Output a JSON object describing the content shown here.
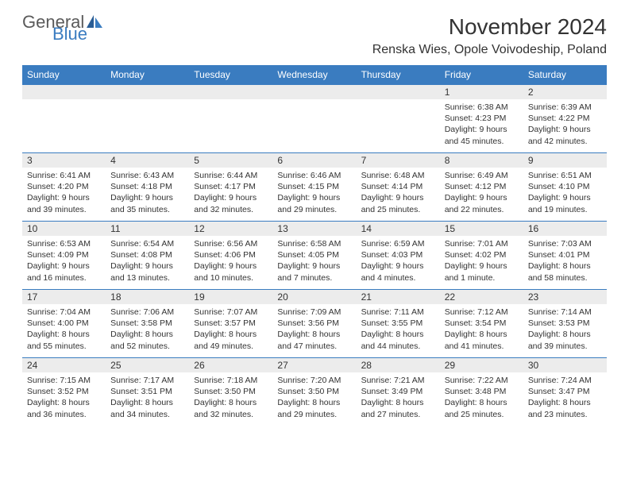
{
  "logo": {
    "text1": "General",
    "text2": "Blue"
  },
  "title": "November 2024",
  "location": "Renska Wies, Opole Voivodeship, Poland",
  "colors": {
    "header_bg": "#3a7cc0",
    "header_text": "#ffffff",
    "date_bg": "#ececec",
    "text": "#333333",
    "border": "#3a7cc0",
    "logo_dark": "#5a5a5a",
    "logo_blue": "#3a7cc0"
  },
  "dayNames": [
    "Sunday",
    "Monday",
    "Tuesday",
    "Wednesday",
    "Thursday",
    "Friday",
    "Saturday"
  ],
  "weeks": [
    [
      null,
      null,
      null,
      null,
      null,
      {
        "d": "1",
        "sr": "6:38 AM",
        "ss": "4:23 PM",
        "dh": "9",
        "dm": "45"
      },
      {
        "d": "2",
        "sr": "6:39 AM",
        "ss": "4:22 PM",
        "dh": "9",
        "dm": "42"
      }
    ],
    [
      {
        "d": "3",
        "sr": "6:41 AM",
        "ss": "4:20 PM",
        "dh": "9",
        "dm": "39"
      },
      {
        "d": "4",
        "sr": "6:43 AM",
        "ss": "4:18 PM",
        "dh": "9",
        "dm": "35"
      },
      {
        "d": "5",
        "sr": "6:44 AM",
        "ss": "4:17 PM",
        "dh": "9",
        "dm": "32"
      },
      {
        "d": "6",
        "sr": "6:46 AM",
        "ss": "4:15 PM",
        "dh": "9",
        "dm": "29"
      },
      {
        "d": "7",
        "sr": "6:48 AM",
        "ss": "4:14 PM",
        "dh": "9",
        "dm": "25"
      },
      {
        "d": "8",
        "sr": "6:49 AM",
        "ss": "4:12 PM",
        "dh": "9",
        "dm": "22"
      },
      {
        "d": "9",
        "sr": "6:51 AM",
        "ss": "4:10 PM",
        "dh": "9",
        "dm": "19"
      }
    ],
    [
      {
        "d": "10",
        "sr": "6:53 AM",
        "ss": "4:09 PM",
        "dh": "9",
        "dm": "16"
      },
      {
        "d": "11",
        "sr": "6:54 AM",
        "ss": "4:08 PM",
        "dh": "9",
        "dm": "13"
      },
      {
        "d": "12",
        "sr": "6:56 AM",
        "ss": "4:06 PM",
        "dh": "9",
        "dm": "10"
      },
      {
        "d": "13",
        "sr": "6:58 AM",
        "ss": "4:05 PM",
        "dh": "9",
        "dm": "7"
      },
      {
        "d": "14",
        "sr": "6:59 AM",
        "ss": "4:03 PM",
        "dh": "9",
        "dm": "4"
      },
      {
        "d": "15",
        "sr": "7:01 AM",
        "ss": "4:02 PM",
        "dh": "9",
        "dm": "1 minute."
      },
      {
        "d": "16",
        "sr": "7:03 AM",
        "ss": "4:01 PM",
        "dh": "8",
        "dm": "58"
      }
    ],
    [
      {
        "d": "17",
        "sr": "7:04 AM",
        "ss": "4:00 PM",
        "dh": "8",
        "dm": "55"
      },
      {
        "d": "18",
        "sr": "7:06 AM",
        "ss": "3:58 PM",
        "dh": "8",
        "dm": "52"
      },
      {
        "d": "19",
        "sr": "7:07 AM",
        "ss": "3:57 PM",
        "dh": "8",
        "dm": "49"
      },
      {
        "d": "20",
        "sr": "7:09 AM",
        "ss": "3:56 PM",
        "dh": "8",
        "dm": "47"
      },
      {
        "d": "21",
        "sr": "7:11 AM",
        "ss": "3:55 PM",
        "dh": "8",
        "dm": "44"
      },
      {
        "d": "22",
        "sr": "7:12 AM",
        "ss": "3:54 PM",
        "dh": "8",
        "dm": "41"
      },
      {
        "d": "23",
        "sr": "7:14 AM",
        "ss": "3:53 PM",
        "dh": "8",
        "dm": "39"
      }
    ],
    [
      {
        "d": "24",
        "sr": "7:15 AM",
        "ss": "3:52 PM",
        "dh": "8",
        "dm": "36"
      },
      {
        "d": "25",
        "sr": "7:17 AM",
        "ss": "3:51 PM",
        "dh": "8",
        "dm": "34"
      },
      {
        "d": "26",
        "sr": "7:18 AM",
        "ss": "3:50 PM",
        "dh": "8",
        "dm": "32"
      },
      {
        "d": "27",
        "sr": "7:20 AM",
        "ss": "3:50 PM",
        "dh": "8",
        "dm": "29"
      },
      {
        "d": "28",
        "sr": "7:21 AM",
        "ss": "3:49 PM",
        "dh": "8",
        "dm": "27"
      },
      {
        "d": "29",
        "sr": "7:22 AM",
        "ss": "3:48 PM",
        "dh": "8",
        "dm": "25"
      },
      {
        "d": "30",
        "sr": "7:24 AM",
        "ss": "3:47 PM",
        "dh": "8",
        "dm": "23"
      }
    ]
  ],
  "labels": {
    "sunrise": "Sunrise:",
    "sunset": "Sunset:",
    "daylight": "Daylight:",
    "hours": "hours",
    "and": "and",
    "minutes": "minutes."
  }
}
